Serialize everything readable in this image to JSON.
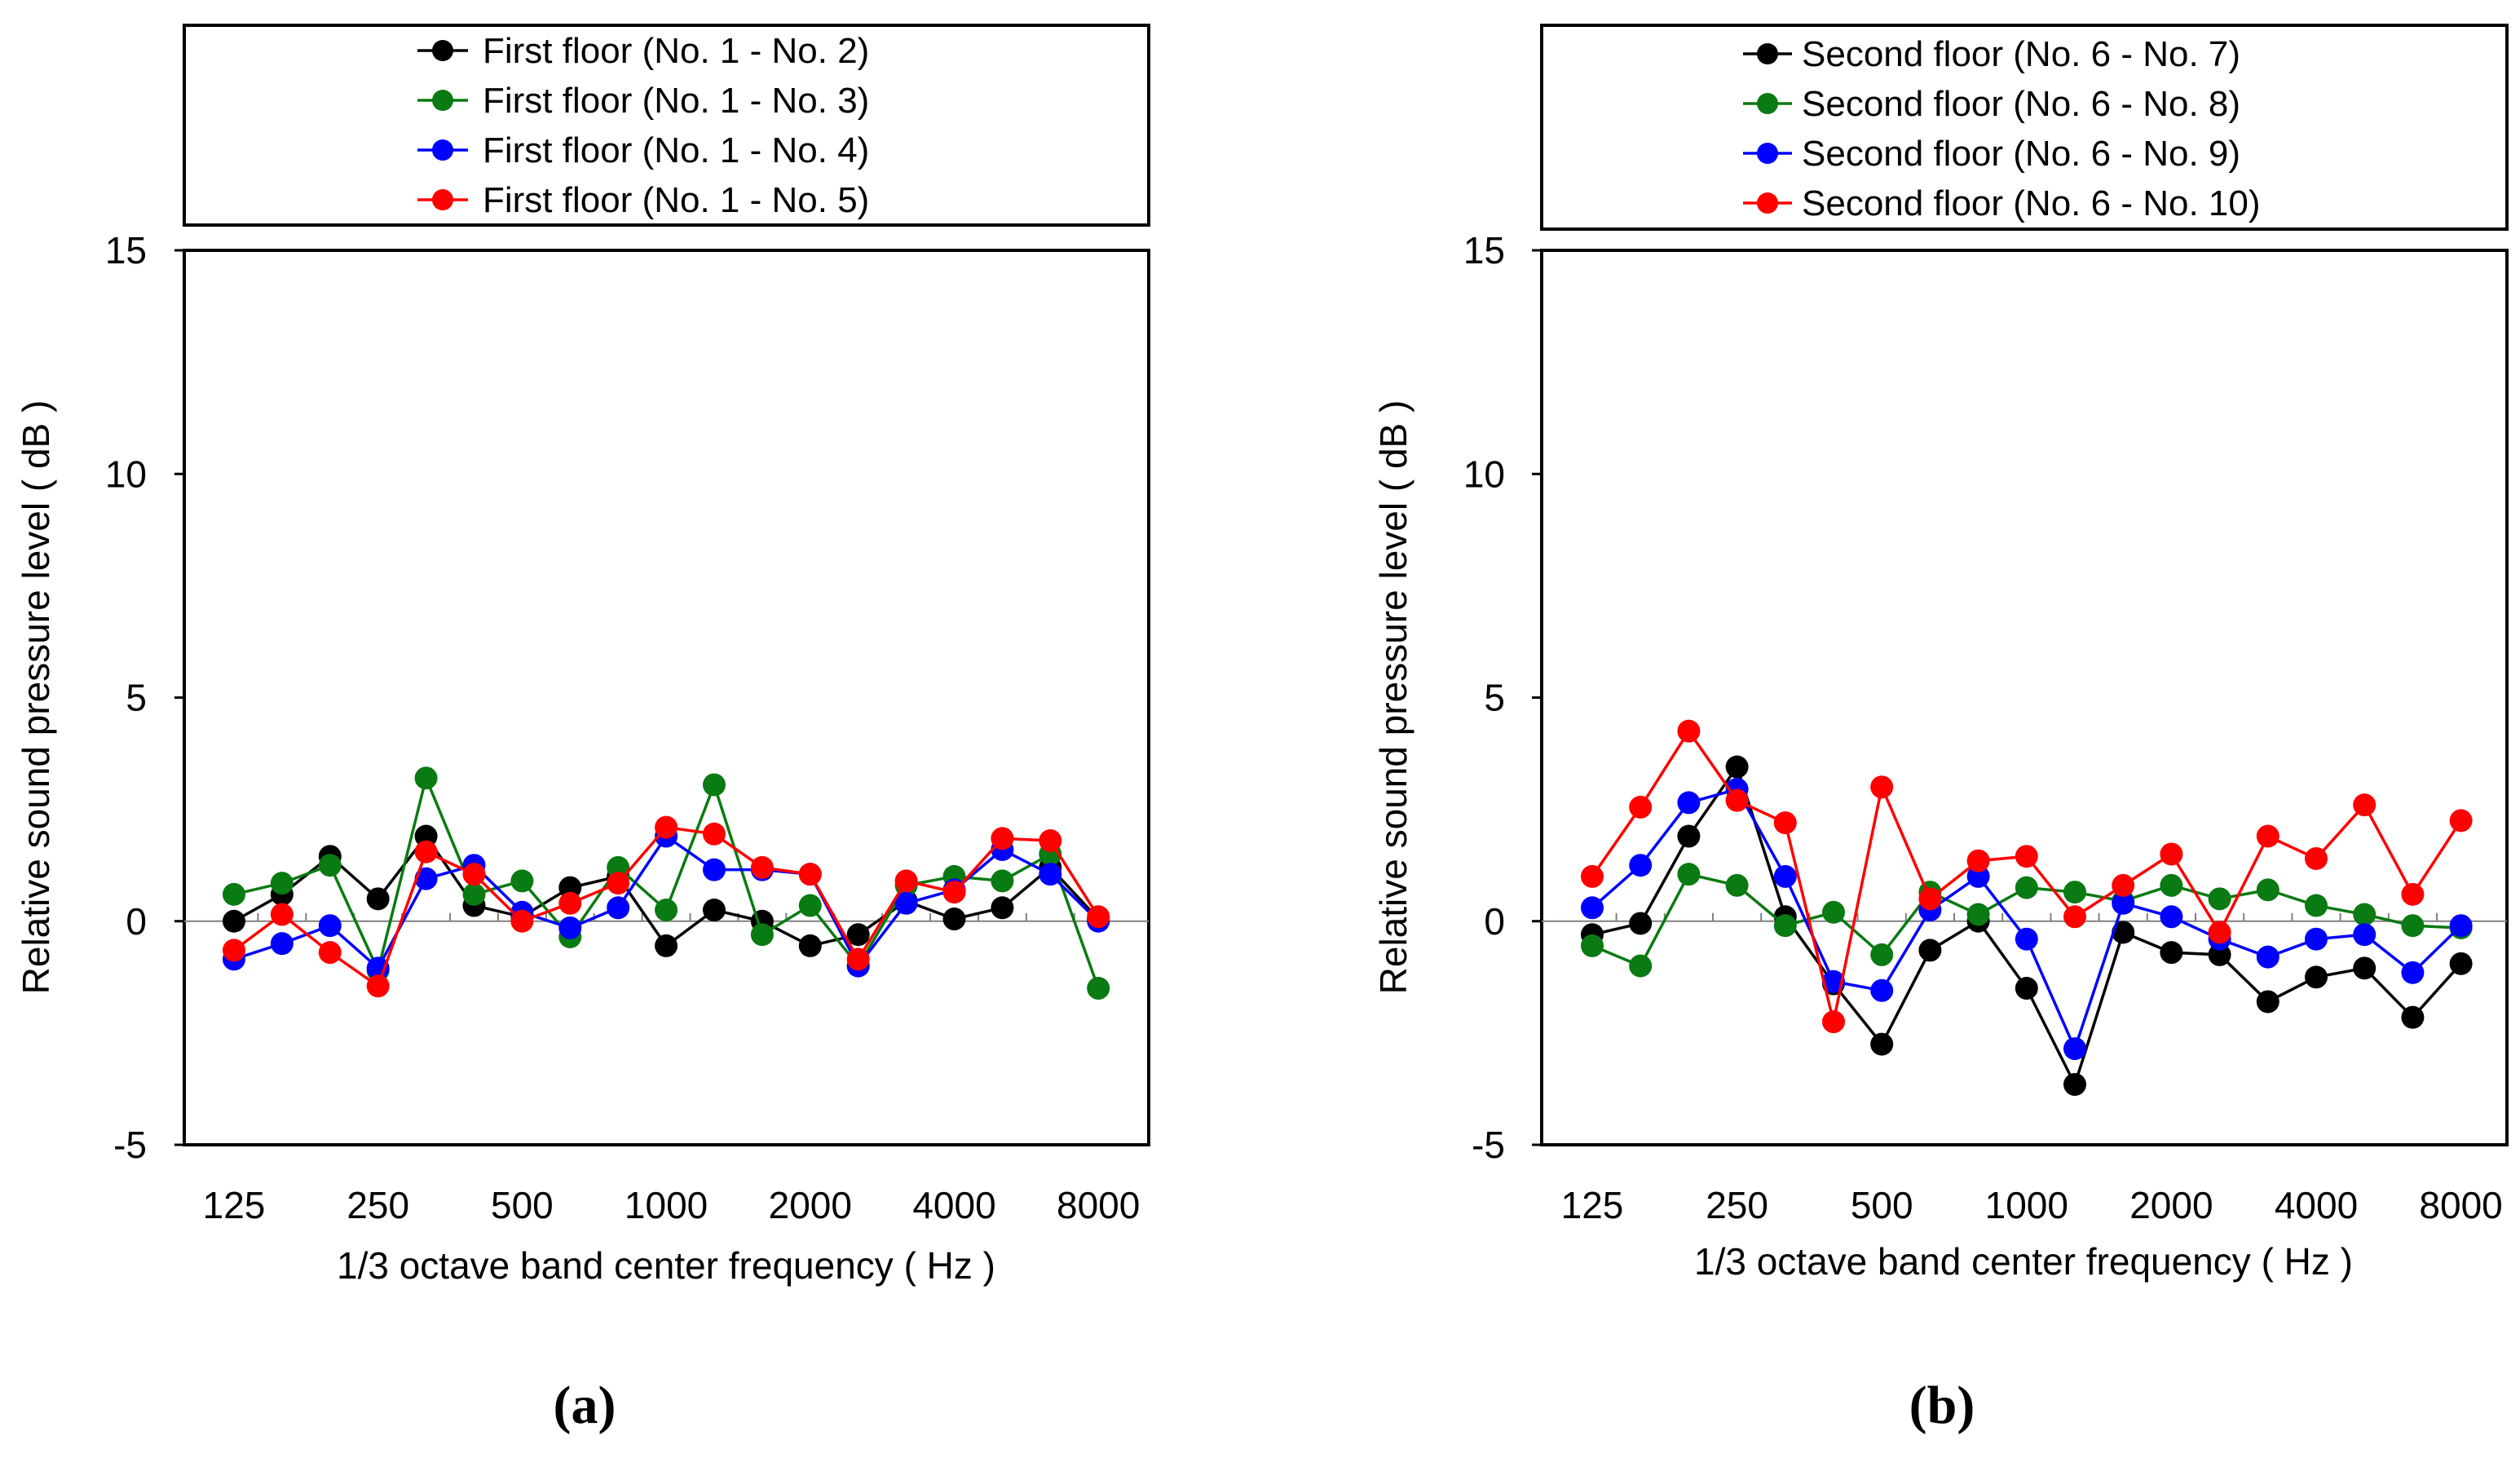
{
  "colors": {
    "black": "#000000",
    "green": "#0a7a12",
    "blue": "#0000ff",
    "red": "#ff0000",
    "axis": "#000000",
    "zero": "#808080"
  },
  "chart_data": [
    {
      "type": "line",
      "caption": "(a)",
      "xlabel": "1/3 octave band center frequency ( Hz )",
      "ylabel": "Relative sound pressure level ( dB )",
      "ylim": [
        -5,
        15
      ],
      "yticks": [
        "-5",
        "0",
        "5",
        "10",
        "15"
      ],
      "xtick_labels": [
        "125",
        "250",
        "500",
        "1000",
        "2000",
        "4000",
        "8000"
      ],
      "x": [
        "125",
        "160",
        "200",
        "250",
        "315",
        "400",
        "500",
        "630",
        "800",
        "1000",
        "1250",
        "1600",
        "2000",
        "2500",
        "3150",
        "4000",
        "5000",
        "6300",
        "8000"
      ],
      "series": [
        {
          "name": "First floor (No. 1 - No. 2)",
          "color": "black",
          "values": [
            0.0,
            0.6,
            1.45,
            0.5,
            1.9,
            0.35,
            0.1,
            0.75,
            1.0,
            -0.55,
            0.25,
            0.0,
            -0.55,
            -0.3,
            0.45,
            0.05,
            0.3,
            1.2,
            0.05
          ]
        },
        {
          "name": "First floor (No. 1 - No. 3)",
          "color": "green",
          "values": [
            0.6,
            0.85,
            1.25,
            -1.1,
            3.2,
            0.6,
            0.9,
            -0.35,
            1.2,
            0.25,
            3.05,
            -0.3,
            0.35,
            -1.0,
            0.8,
            1.0,
            0.9,
            1.5,
            -1.5
          ]
        },
        {
          "name": "First floor (No. 1 - No. 4)",
          "color": "blue",
          "values": [
            -0.85,
            -0.5,
            -0.1,
            -1.05,
            0.95,
            1.25,
            0.2,
            -0.15,
            0.3,
            1.9,
            1.15,
            1.15,
            1.05,
            -1.0,
            0.4,
            0.7,
            1.6,
            1.05,
            0.0
          ]
        },
        {
          "name": "First floor (No. 1 - No. 5)",
          "color": "red",
          "values": [
            -0.65,
            0.15,
            -0.7,
            -1.45,
            1.55,
            1.05,
            0.0,
            0.4,
            0.85,
            2.1,
            1.95,
            1.2,
            1.05,
            -0.85,
            0.9,
            0.65,
            1.85,
            1.8,
            0.1
          ]
        }
      ]
    },
    {
      "type": "line",
      "caption": "(b)",
      "xlabel": "1/3 octave band center frequency ( Hz )",
      "ylabel": "Relative sound pressure level ( dB )",
      "ylim": [
        -5,
        15
      ],
      "yticks": [
        "-5",
        "0",
        "5",
        "10",
        "15"
      ],
      "xtick_labels": [
        "125",
        "250",
        "500",
        "1000",
        "2000",
        "4000",
        "8000"
      ],
      "x": [
        "125",
        "160",
        "200",
        "250",
        "315",
        "400",
        "500",
        "630",
        "800",
        "1000",
        "1250",
        "1600",
        "2000",
        "2500",
        "3150",
        "4000",
        "5000",
        "6300",
        "8000"
      ],
      "series": [
        {
          "name": "Second floor (No. 6 - No. 7)",
          "color": "black",
          "values": [
            -0.3,
            -0.05,
            1.9,
            3.45,
            0.1,
            -1.4,
            -2.75,
            -0.65,
            0.0,
            -1.5,
            -3.65,
            -0.25,
            -0.7,
            -0.75,
            -1.8,
            -1.25,
            -1.05,
            -2.15,
            -0.95
          ]
        },
        {
          "name": "Second floor (No. 6 - No. 8)",
          "color": "green",
          "values": [
            -0.55,
            -1.0,
            1.05,
            0.8,
            -0.1,
            0.2,
            -0.75,
            0.65,
            0.15,
            0.75,
            0.65,
            0.45,
            0.8,
            0.5,
            0.7,
            0.35,
            0.15,
            -0.1,
            -0.15
          ]
        },
        {
          "name": "Second floor (No. 6 - No. 9)",
          "color": "blue",
          "values": [
            0.3,
            1.25,
            2.65,
            2.95,
            1.0,
            -1.35,
            -1.55,
            0.25,
            1.0,
            -0.4,
            -2.85,
            0.4,
            0.1,
            -0.4,
            -0.8,
            -0.4,
            -0.3,
            -1.15,
            -0.1
          ]
        },
        {
          "name": "Second floor (No. 6 - No. 10)",
          "color": "red",
          "values": [
            1.0,
            2.55,
            4.25,
            2.7,
            2.2,
            -2.25,
            3.0,
            0.5,
            1.35,
            1.45,
            0.1,
            0.8,
            1.5,
            -0.25,
            1.9,
            1.4,
            2.6,
            0.6,
            2.25
          ]
        }
      ]
    }
  ]
}
